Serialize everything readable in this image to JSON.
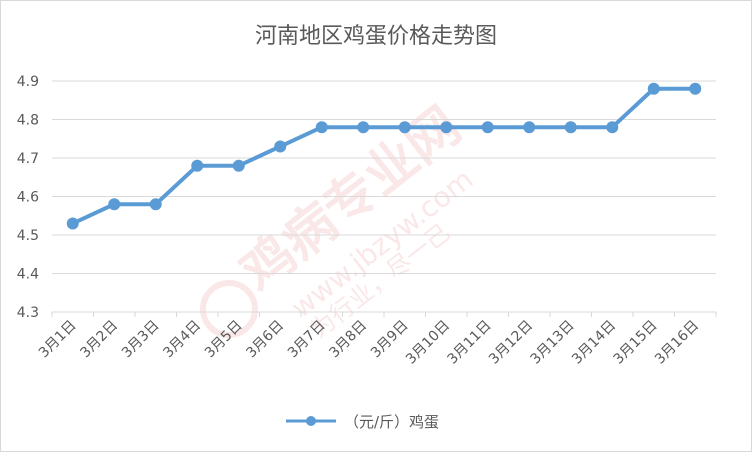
{
  "chart_data": {
    "type": "line",
    "title": "河南地区鸡蛋价格走势图",
    "categories": [
      "3月1日",
      "3月2日",
      "3月3日",
      "3月4日",
      "3月5日",
      "3月6日",
      "3月7日",
      "3月8日",
      "3月9日",
      "3月10日",
      "3月11日",
      "3月12日",
      "3月13日",
      "3月14日",
      "3月15日",
      "3月16日"
    ],
    "series": [
      {
        "name": "（元/斤）鸡蛋",
        "values": [
          4.53,
          4.58,
          4.58,
          4.68,
          4.68,
          4.73,
          4.78,
          4.78,
          4.78,
          4.78,
          4.78,
          4.78,
          4.78,
          4.78,
          4.88,
          4.88
        ],
        "color": "#5b9bd5"
      }
    ],
    "yticks": [
      "4.3",
      "4.4",
      "4.5",
      "4.6",
      "4.7",
      "4.8",
      "4.9"
    ],
    "ylim": [
      4.3,
      4.9
    ],
    "grid": true,
    "legend_position": "bottom",
    "colors": {
      "grid": "#d9d9d9",
      "axis_text": "#595959",
      "title": "#595959"
    }
  },
  "watermark": {
    "cn": "鸡病专业网",
    "url": "www.jbzyw.com",
    "slogan": "为行业，尽一己"
  }
}
